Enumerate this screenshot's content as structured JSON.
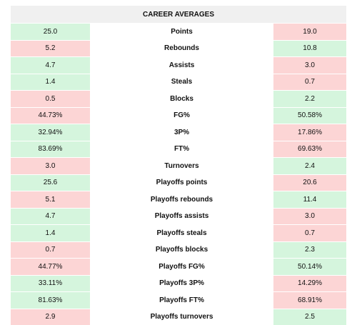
{
  "header": {
    "title": "CAREER AVERAGES"
  },
  "colors": {
    "better": "#d5f5dd",
    "worse": "#fcd5d5",
    "header": "#f0f0f0"
  },
  "table": {
    "rows": [
      {
        "left": "25.0",
        "label": "Points",
        "right": "19.0",
        "better": "left"
      },
      {
        "left": "5.2",
        "label": "Rebounds",
        "right": "10.8",
        "better": "right"
      },
      {
        "left": "4.7",
        "label": "Assists",
        "right": "3.0",
        "better": "left"
      },
      {
        "left": "1.4",
        "label": "Steals",
        "right": "0.7",
        "better": "left"
      },
      {
        "left": "0.5",
        "label": "Blocks",
        "right": "2.2",
        "better": "right"
      },
      {
        "left": "44.73%",
        "label": "FG%",
        "right": "50.58%",
        "better": "right"
      },
      {
        "left": "32.94%",
        "label": "3P%",
        "right": "17.86%",
        "better": "left"
      },
      {
        "left": "83.69%",
        "label": "FT%",
        "right": "69.63%",
        "better": "left"
      },
      {
        "left": "3.0",
        "label": "Turnovers",
        "right": "2.4",
        "better": "right"
      },
      {
        "left": "25.6",
        "label": "Playoffs points",
        "right": "20.6",
        "better": "left"
      },
      {
        "left": "5.1",
        "label": "Playoffs rebounds",
        "right": "11.4",
        "better": "right"
      },
      {
        "left": "4.7",
        "label": "Playoffs assists",
        "right": "3.0",
        "better": "left"
      },
      {
        "left": "1.4",
        "label": "Playoffs steals",
        "right": "0.7",
        "better": "left"
      },
      {
        "left": "0.7",
        "label": "Playoffs blocks",
        "right": "2.3",
        "better": "right"
      },
      {
        "left": "44.77%",
        "label": "Playoffs FG%",
        "right": "50.14%",
        "better": "right"
      },
      {
        "left": "33.11%",
        "label": "Playoffs 3P%",
        "right": "14.29%",
        "better": "left"
      },
      {
        "left": "81.63%",
        "label": "Playoffs FT%",
        "right": "68.91%",
        "better": "left"
      },
      {
        "left": "2.9",
        "label": "Playoffs turnovers",
        "right": "2.5",
        "better": "right"
      }
    ]
  }
}
